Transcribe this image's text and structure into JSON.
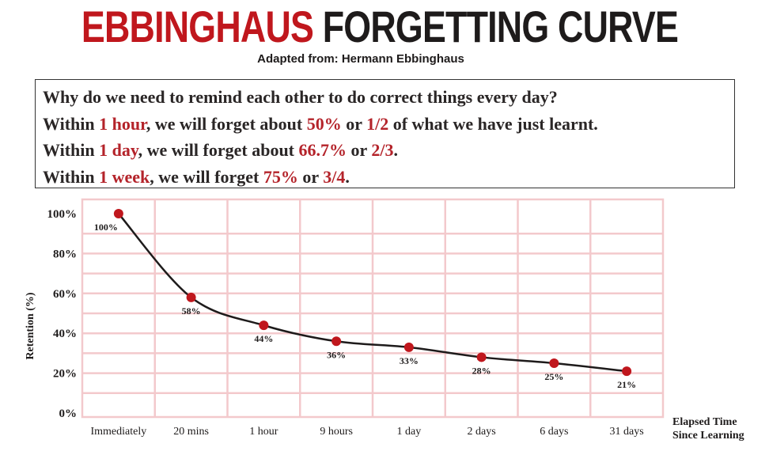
{
  "header": {
    "title_part1": "EBBINGHAUS",
    "title_part2": "FORGETTING CURVE",
    "subtitle": "Adapted from: Hermann Ebbinghaus"
  },
  "textbox": {
    "line1": "Why do we need to remind each other to do correct things every day?",
    "line2": {
      "a": "Within ",
      "b": "1 hour",
      "c": ", we will forget about ",
      "d": "50%",
      "e": " or ",
      "f": "1/2",
      "g": " of what we have just learnt."
    },
    "line3": {
      "a": "Within ",
      "b": "1 day",
      "c": ", we will forget about ",
      "d": "66.7%",
      "e": " or ",
      "f": "2/3",
      "g": "."
    },
    "line4": {
      "a": "Within ",
      "b": "1 week",
      "c": ", we will forget ",
      "d": "75%",
      "e": " or ",
      "f": "3/4",
      "g": "."
    }
  },
  "colors": {
    "title_red": "#c0171d",
    "highlight_red": "#b4232a",
    "point_red": "#c0171d",
    "grid_pink": "#f3c9cc",
    "line": "#1e1b1b"
  },
  "chart_data": {
    "type": "line",
    "categories": [
      "Immediately",
      "20 mins",
      "1 hour",
      "9 hours",
      "1 day",
      "2 days",
      "6 days",
      "31 days"
    ],
    "values": [
      100,
      58,
      44,
      36,
      33,
      28,
      25,
      21
    ],
    "data_labels": [
      "100%",
      "58%",
      "44%",
      "36%",
      "33%",
      "28%",
      "25%",
      "21%"
    ],
    "yticks": [
      "0%",
      "20%",
      "40%",
      "60%",
      "80%",
      "100%"
    ],
    "ylim": [
      0,
      100
    ],
    "ylabel": "Retention (%)",
    "xlabel_line1": "Elapsed Time",
    "xlabel_line2": "Since Learning",
    "grid": true
  }
}
